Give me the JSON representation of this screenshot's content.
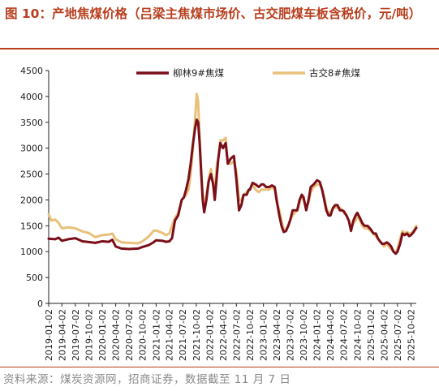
{
  "figure": {
    "title": "图 10：产地焦煤价格（吕梁主焦煤市场价、古交肥煤车板含税价，元/吨）",
    "source": "资料来源：煤炭资源网，招商证券，数据截至 11 月 7 日"
  },
  "colors": {
    "accent": "#b83e1e",
    "series_1": "#7a0f1a",
    "series_2": "#e8c07a"
  },
  "chart_data": {
    "type": "line",
    "title": "",
    "xlabel": "",
    "ylabel": "",
    "ylim": [
      0,
      4500
    ],
    "yticks": [
      0,
      500,
      1000,
      1500,
      2000,
      2500,
      3000,
      3500,
      4000,
      4500
    ],
    "xlim": [
      "2019-01-02",
      "2025-11-07"
    ],
    "xticks": [
      "2019-01-02",
      "2019-04-02",
      "2019-07-02",
      "2019-10-02",
      "2020-01-02",
      "2020-04-02",
      "2020-07-02",
      "2020-10-02",
      "2021-01-02",
      "2021-04-02",
      "2021-07-02",
      "2021-10-02",
      "2022-01-02",
      "2022-04-02",
      "2022-07-02",
      "2022-10-02",
      "2023-01-02",
      "2023-04-02",
      "2023-07-02",
      "2023-10-02",
      "2024-01-02",
      "2024-04-02",
      "2024-07-02",
      "2024-10-02",
      "2025-01-02",
      "2025-04-02",
      "2025-07-02",
      "2025-10-02"
    ],
    "grid": false,
    "legend_position": "top",
    "series": [
      {
        "name": "柳林9#焦煤",
        "points": [
          [
            "2019-01-02",
            1250
          ],
          [
            "2019-02-15",
            1240
          ],
          [
            "2019-03-10",
            1270
          ],
          [
            "2019-04-02",
            1210
          ],
          [
            "2019-05-15",
            1240
          ],
          [
            "2019-07-02",
            1260
          ],
          [
            "2019-08-20",
            1200
          ],
          [
            "2019-10-02",
            1185
          ],
          [
            "2019-11-15",
            1170
          ],
          [
            "2020-01-02",
            1200
          ],
          [
            "2020-02-15",
            1190
          ],
          [
            "2020-03-10",
            1230
          ],
          [
            "2020-04-02",
            1100
          ],
          [
            "2020-05-10",
            1060
          ],
          [
            "2020-07-02",
            1050
          ],
          [
            "2020-09-01",
            1060
          ],
          [
            "2020-10-02",
            1090
          ],
          [
            "2020-11-15",
            1130
          ],
          [
            "2020-12-15",
            1180
          ],
          [
            "2021-01-02",
            1220
          ],
          [
            "2021-02-15",
            1210
          ],
          [
            "2021-03-10",
            1190
          ],
          [
            "2021-04-02",
            1200
          ],
          [
            "2021-04-20",
            1260
          ],
          [
            "2021-05-10",
            1600
          ],
          [
            "2021-06-01",
            1700
          ],
          [
            "2021-06-25",
            2000
          ],
          [
            "2021-07-10",
            2050
          ],
          [
            "2021-07-25",
            2200
          ],
          [
            "2021-08-10",
            2400
          ],
          [
            "2021-08-25",
            2700
          ],
          [
            "2021-09-10",
            3100
          ],
          [
            "2021-09-25",
            3400
          ],
          [
            "2021-10-05",
            3550
          ],
          [
            "2021-10-15",
            3500
          ],
          [
            "2021-10-25",
            3100
          ],
          [
            "2021-11-05",
            2500
          ],
          [
            "2021-11-15",
            2000
          ],
          [
            "2021-11-25",
            1760
          ],
          [
            "2021-12-10",
            2000
          ],
          [
            "2021-12-25",
            2350
          ],
          [
            "2022-01-10",
            2500
          ],
          [
            "2022-01-25",
            2300
          ],
          [
            "2022-02-05",
            2000
          ],
          [
            "2022-02-20",
            2500
          ],
          [
            "2022-03-01",
            2800
          ],
          [
            "2022-03-15",
            3100
          ],
          [
            "2022-04-02",
            3000
          ],
          [
            "2022-04-20",
            3100
          ],
          [
            "2022-05-05",
            2700
          ],
          [
            "2022-05-25",
            2800
          ],
          [
            "2022-06-15",
            2850
          ],
          [
            "2022-07-02",
            2400
          ],
          [
            "2022-07-20",
            1800
          ],
          [
            "2022-08-05",
            1900
          ],
          [
            "2022-08-20",
            2100
          ],
          [
            "2022-09-10",
            2100
          ],
          [
            "2022-09-25",
            2200
          ],
          [
            "2022-10-02",
            2200
          ],
          [
            "2022-10-20",
            2330
          ],
          [
            "2022-11-10",
            2300
          ],
          [
            "2022-12-01",
            2250
          ],
          [
            "2022-12-20",
            2300
          ],
          [
            "2023-01-02",
            2300
          ],
          [
            "2023-01-20",
            2250
          ],
          [
            "2023-02-10",
            2250
          ],
          [
            "2023-03-01",
            2280
          ],
          [
            "2023-03-20",
            2250
          ],
          [
            "2023-04-02",
            2000
          ],
          [
            "2023-04-20",
            1700
          ],
          [
            "2023-05-05",
            1500
          ],
          [
            "2023-05-20",
            1380
          ],
          [
            "2023-06-05",
            1400
          ],
          [
            "2023-06-20",
            1500
          ],
          [
            "2023-07-02",
            1600
          ],
          [
            "2023-07-20",
            1800
          ],
          [
            "2023-08-05",
            1800
          ],
          [
            "2023-08-20",
            1800
          ],
          [
            "2023-09-05",
            2000
          ],
          [
            "2023-09-20",
            2100
          ],
          [
            "2023-10-02",
            2050
          ],
          [
            "2023-10-20",
            1800
          ],
          [
            "2023-11-05",
            2000
          ],
          [
            "2023-11-20",
            2250
          ],
          [
            "2023-12-10",
            2300
          ],
          [
            "2024-01-02",
            2380
          ],
          [
            "2024-01-20",
            2350
          ],
          [
            "2024-02-05",
            2200
          ],
          [
            "2024-02-20",
            2000
          ],
          [
            "2024-03-05",
            1800
          ],
          [
            "2024-03-20",
            1700
          ],
          [
            "2024-04-02",
            1700
          ],
          [
            "2024-04-20",
            1850
          ],
          [
            "2024-05-05",
            1900
          ],
          [
            "2024-05-20",
            1900
          ],
          [
            "2024-06-05",
            1800
          ],
          [
            "2024-06-20",
            1800
          ],
          [
            "2024-07-02",
            1780
          ],
          [
            "2024-07-20",
            1700
          ],
          [
            "2024-08-05",
            1600
          ],
          [
            "2024-08-20",
            1400
          ],
          [
            "2024-09-05",
            1600
          ],
          [
            "2024-09-20",
            1700
          ],
          [
            "2024-10-02",
            1750
          ],
          [
            "2024-10-20",
            1650
          ],
          [
            "2024-11-05",
            1550
          ],
          [
            "2024-11-20",
            1500
          ],
          [
            "2024-12-10",
            1500
          ],
          [
            "2025-01-02",
            1430
          ],
          [
            "2025-01-20",
            1350
          ],
          [
            "2025-02-05",
            1350
          ],
          [
            "2025-02-20",
            1250
          ],
          [
            "2025-03-05",
            1200
          ],
          [
            "2025-03-20",
            1150
          ],
          [
            "2025-04-02",
            1150
          ],
          [
            "2025-04-20",
            1180
          ],
          [
            "2025-05-05",
            1150
          ],
          [
            "2025-05-20",
            1100
          ],
          [
            "2025-06-05",
            1000
          ],
          [
            "2025-06-20",
            960
          ],
          [
            "2025-07-02",
            1000
          ],
          [
            "2025-07-20",
            1150
          ],
          [
            "2025-08-05",
            1350
          ],
          [
            "2025-08-20",
            1320
          ],
          [
            "2025-09-05",
            1350
          ],
          [
            "2025-09-20",
            1300
          ],
          [
            "2025-10-02",
            1320
          ],
          [
            "2025-10-20",
            1380
          ],
          [
            "2025-11-07",
            1460
          ]
        ]
      },
      {
        "name": "古交8#焦煤",
        "points": [
          [
            "2019-01-02",
            1720
          ],
          [
            "2019-01-20",
            1600
          ],
          [
            "2019-02-15",
            1620
          ],
          [
            "2019-03-10",
            1560
          ],
          [
            "2019-04-02",
            1450
          ],
          [
            "2019-05-15",
            1470
          ],
          [
            "2019-07-02",
            1450
          ],
          [
            "2019-08-20",
            1390
          ],
          [
            "2019-10-02",
            1360
          ],
          [
            "2019-11-15",
            1280
          ],
          [
            "2020-01-02",
            1320
          ],
          [
            "2020-02-15",
            1330
          ],
          [
            "2020-03-10",
            1350
          ],
          [
            "2020-04-02",
            1240
          ],
          [
            "2020-05-10",
            1180
          ],
          [
            "2020-07-02",
            1170
          ],
          [
            "2020-09-01",
            1160
          ],
          [
            "2020-10-02",
            1200
          ],
          [
            "2020-11-15",
            1300
          ],
          [
            "2020-12-15",
            1400
          ],
          [
            "2021-01-02",
            1410
          ],
          [
            "2021-02-15",
            1360
          ],
          [
            "2021-03-10",
            1320
          ],
          [
            "2021-04-02",
            1350
          ],
          [
            "2021-04-20",
            1500
          ],
          [
            "2021-05-10",
            1650
          ],
          [
            "2021-06-01",
            1750
          ],
          [
            "2021-06-25",
            2000
          ],
          [
            "2021-07-10",
            2050
          ],
          [
            "2021-07-25",
            2100
          ],
          [
            "2021-08-10",
            2200
          ],
          [
            "2021-08-25",
            2500
          ],
          [
            "2021-09-10",
            3000
          ],
          [
            "2021-09-25",
            3600
          ],
          [
            "2021-10-05",
            4050
          ],
          [
            "2021-10-15",
            3900
          ],
          [
            "2021-10-25",
            3200
          ],
          [
            "2021-11-05",
            2600
          ],
          [
            "2021-11-15",
            2100
          ],
          [
            "2021-11-25",
            1950
          ],
          [
            "2021-12-10",
            2100
          ],
          [
            "2021-12-25",
            2400
          ],
          [
            "2022-01-10",
            2600
          ],
          [
            "2022-01-25",
            2300
          ],
          [
            "2022-02-05",
            2200
          ],
          [
            "2022-02-20",
            2700
          ],
          [
            "2022-03-01",
            2800
          ],
          [
            "2022-03-15",
            3150
          ],
          [
            "2022-04-02",
            3150
          ],
          [
            "2022-04-20",
            3200
          ],
          [
            "2022-05-05",
            2700
          ],
          [
            "2022-05-25",
            2700
          ],
          [
            "2022-06-15",
            2750
          ],
          [
            "2022-07-02",
            2550
          ],
          [
            "2022-07-20",
            2000
          ],
          [
            "2022-08-05",
            2000
          ],
          [
            "2022-08-20",
            2100
          ],
          [
            "2022-09-10",
            2150
          ],
          [
            "2022-09-25",
            2200
          ],
          [
            "2022-10-02",
            2200
          ],
          [
            "2022-10-20",
            2300
          ],
          [
            "2022-11-10",
            2200
          ],
          [
            "2022-12-01",
            2150
          ],
          [
            "2022-12-20",
            2200
          ],
          [
            "2023-01-02",
            2200
          ],
          [
            "2023-01-20",
            2200
          ],
          [
            "2023-02-10",
            2200
          ],
          [
            "2023-03-01",
            2250
          ],
          [
            "2023-03-20",
            2200
          ],
          [
            "2023-04-02",
            1950
          ],
          [
            "2023-04-20",
            1800
          ],
          [
            "2023-05-05",
            1600
          ],
          [
            "2023-05-20",
            1420
          ],
          [
            "2023-06-05",
            1430
          ],
          [
            "2023-06-20",
            1500
          ],
          [
            "2023-07-02",
            1600
          ],
          [
            "2023-07-20",
            1700
          ],
          [
            "2023-08-05",
            1750
          ],
          [
            "2023-08-20",
            1800
          ],
          [
            "2023-09-05",
            1950
          ],
          [
            "2023-09-20",
            2100
          ],
          [
            "2023-10-02",
            2000
          ],
          [
            "2023-10-20",
            1850
          ],
          [
            "2023-11-05",
            1950
          ],
          [
            "2023-11-20",
            2150
          ],
          [
            "2023-12-10",
            2250
          ],
          [
            "2024-01-02",
            2300
          ],
          [
            "2024-01-20",
            2300
          ],
          [
            "2024-02-05",
            2200
          ],
          [
            "2024-02-20",
            2050
          ],
          [
            "2024-03-05",
            1850
          ],
          [
            "2024-03-20",
            1750
          ],
          [
            "2024-04-02",
            1750
          ],
          [
            "2024-04-20",
            1850
          ],
          [
            "2024-05-05",
            1850
          ],
          [
            "2024-05-20",
            1850
          ],
          [
            "2024-06-05",
            1850
          ],
          [
            "2024-06-20",
            1800
          ],
          [
            "2024-07-02",
            1750
          ],
          [
            "2024-07-20",
            1700
          ],
          [
            "2024-08-05",
            1600
          ],
          [
            "2024-08-20",
            1450
          ],
          [
            "2024-09-05",
            1550
          ],
          [
            "2024-09-20",
            1600
          ],
          [
            "2024-10-02",
            1700
          ],
          [
            "2024-10-20",
            1600
          ],
          [
            "2024-11-05",
            1500
          ],
          [
            "2024-11-20",
            1450
          ],
          [
            "2024-12-10",
            1450
          ],
          [
            "2025-01-02",
            1400
          ],
          [
            "2025-01-20",
            1350
          ],
          [
            "2025-02-05",
            1300
          ],
          [
            "2025-02-20",
            1250
          ],
          [
            "2025-03-05",
            1200
          ],
          [
            "2025-03-20",
            1150
          ],
          [
            "2025-04-02",
            1100
          ],
          [
            "2025-04-20",
            1150
          ],
          [
            "2025-05-05",
            1100
          ],
          [
            "2025-05-20",
            1050
          ],
          [
            "2025-06-05",
            1000
          ],
          [
            "2025-06-20",
            980
          ],
          [
            "2025-07-02",
            1050
          ],
          [
            "2025-07-20",
            1250
          ],
          [
            "2025-08-05",
            1400
          ],
          [
            "2025-08-20",
            1350
          ],
          [
            "2025-09-05",
            1380
          ],
          [
            "2025-09-20",
            1350
          ],
          [
            "2025-10-02",
            1350
          ],
          [
            "2025-10-20",
            1400
          ],
          [
            "2025-11-07",
            1500
          ]
        ]
      }
    ]
  }
}
